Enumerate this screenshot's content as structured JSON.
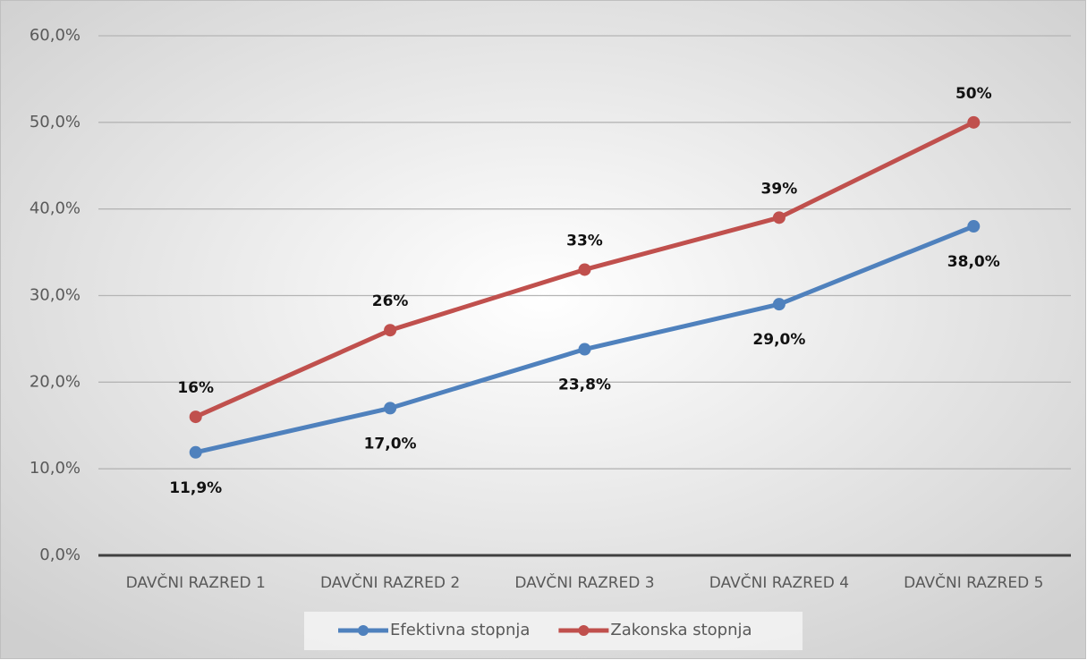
{
  "chart_data": {
    "type": "line",
    "categories": [
      "DAVČNI RAZRED 1",
      "DAVČNI RAZRED 2",
      "DAVČNI RAZRED 3",
      "DAVČNI RAZRED 4",
      "DAVČNI RAZRED 5"
    ],
    "series": [
      {
        "name": "Efektivna stopnja",
        "color": "#4f81bd",
        "values": [
          11.9,
          17.0,
          23.8,
          29.0,
          38.0
        ],
        "value_labels": [
          "11,9%",
          "17,0%",
          "23,8%",
          "29,0%",
          "38,0%"
        ],
        "label_position": "below"
      },
      {
        "name": "Zakonska stopnja",
        "color": "#c0504d",
        "values": [
          16,
          26,
          33,
          39,
          50
        ],
        "value_labels": [
          "16%",
          "26%",
          "33%",
          "39%",
          "50%"
        ],
        "label_position": "above"
      }
    ],
    "ylim": [
      0,
      60
    ],
    "yticks": [
      {
        "value": 0,
        "label": "0,0%"
      },
      {
        "value": 10,
        "label": "10,0%"
      },
      {
        "value": 20,
        "label": "20,0%"
      },
      {
        "value": 30,
        "label": "30,0%"
      },
      {
        "value": 40,
        "label": "40,0%"
      },
      {
        "value": 50,
        "label": "50,0%"
      },
      {
        "value": 60,
        "label": "60,0%"
      }
    ],
    "grid": true,
    "legend": "bottom"
  }
}
